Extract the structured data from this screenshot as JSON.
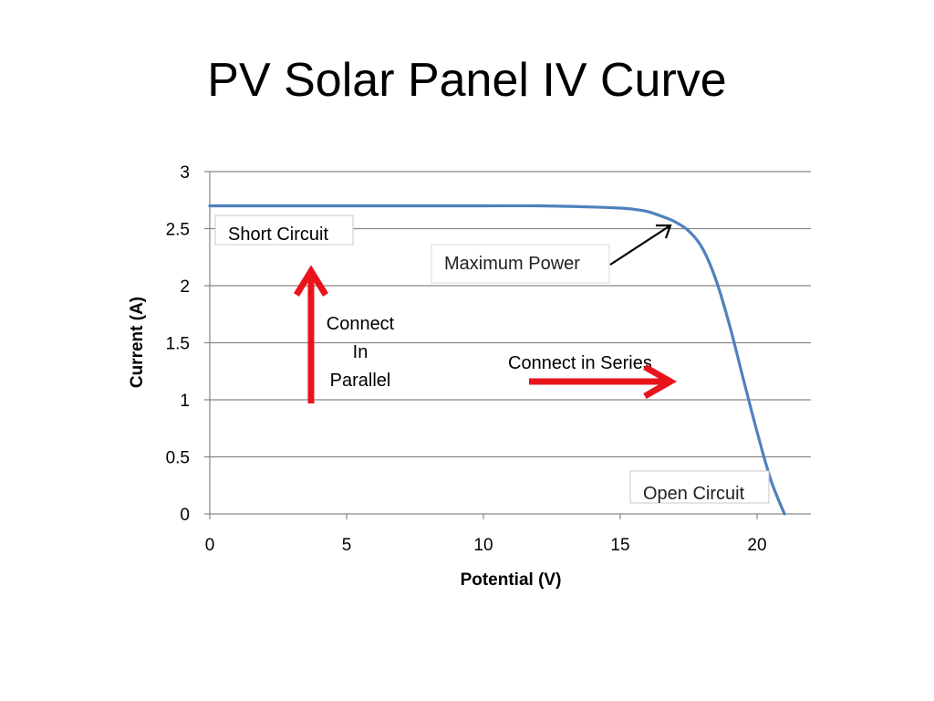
{
  "slide": {
    "title": "PV Solar Panel IV Curve"
  },
  "colors": {
    "curve": "#4f81bd",
    "arrow_red": "#e8141b",
    "gridline": "#868686"
  },
  "chart_data": {
    "type": "line",
    "title": "",
    "xlabel": "Potential (V)",
    "ylabel": "Current (A)",
    "xlim": [
      0,
      22
    ],
    "ylim": [
      0,
      3
    ],
    "xticks": [
      0,
      5,
      10,
      15,
      20
    ],
    "xtick_labels": [
      "0",
      "5",
      "10",
      "15",
      "20"
    ],
    "yticks": [
      0,
      0.5,
      1,
      1.5,
      2,
      2.5,
      3
    ],
    "ytick_labels": [
      "0",
      "0.5",
      "1",
      "1.5",
      "2",
      "2.5",
      "3"
    ],
    "grid": "horizontal",
    "legend": "none",
    "series": [
      {
        "x": [
          0,
          5,
          10,
          12,
          14,
          15,
          15.5,
          16,
          16.5,
          17,
          17.5,
          18,
          18.5,
          19,
          19.5,
          20,
          20.5,
          21
        ],
        "y": [
          2.7,
          2.7,
          2.7,
          2.7,
          2.69,
          2.68,
          2.67,
          2.65,
          2.61,
          2.56,
          2.48,
          2.33,
          2.05,
          1.65,
          1.18,
          0.72,
          0.3,
          0
        ]
      }
    ],
    "annotations": {
      "short_circuit": "Short Circuit",
      "maximum_power": "Maximum Power",
      "open_circuit": "Open Circuit",
      "connect_parallel": [
        "Connect",
        "In",
        "Parallel"
      ],
      "connect_series": "Connect in Series"
    },
    "max_power_point": {
      "x": 17,
      "y": 2.56
    }
  }
}
